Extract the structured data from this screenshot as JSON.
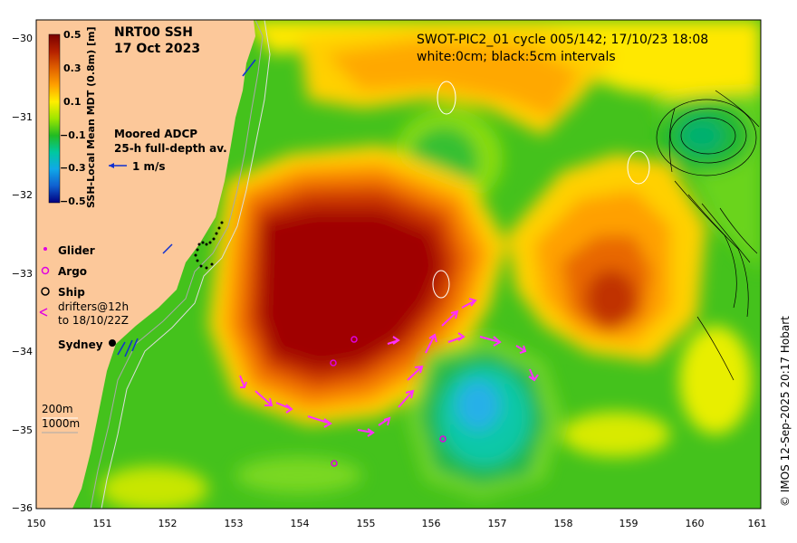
{
  "title": {
    "line1": "NRT00 SSH",
    "line2": "17 Oct 2023"
  },
  "swot": {
    "line1": "SWOT-PIC2_01 cycle 005/142; 17/10/23 18:08",
    "line2": "white:0cm; black:5cm intervals"
  },
  "colorbar": {
    "label": "SSH-Local Mean MDT (0.8m) [m]",
    "ticks": [
      "0.5",
      "0.3",
      "0.1",
      "−0.1",
      "−0.3",
      "−0.5"
    ],
    "stops": [
      "#7a0000",
      "#b42000",
      "#e06000",
      "#ffa000",
      "#ffee00",
      "#9ee600",
      "#22bb22",
      "#00c8a0",
      "#10a8e8",
      "#1060d0",
      "#000080"
    ]
  },
  "adcp": {
    "line1": "Moored ADCP",
    "line2": "25-h full-depth av.",
    "scale": "1 m/s"
  },
  "legend": {
    "glider": "Glider",
    "argo": "Argo",
    "ship": "Ship",
    "drifters1": "drifters@12h",
    "drifters2": "to 18/10/22Z"
  },
  "city": "Sydney",
  "isobaths": [
    "200m",
    "1000m"
  ],
  "axes": {
    "xticks": [
      "150",
      "151",
      "152",
      "153",
      "154",
      "155",
      "156",
      "157",
      "158",
      "159",
      "160",
      "161"
    ],
    "yticks": [
      "−30",
      "−31",
      "−32",
      "−33",
      "−34",
      "−35",
      "−36"
    ]
  },
  "credit": "© IMOS 12-Sep-2025 20:17 Hobart",
  "colors": {
    "land": "#fcc89a",
    "glider": "#e000e0",
    "argo": "#e000e0"
  }
}
